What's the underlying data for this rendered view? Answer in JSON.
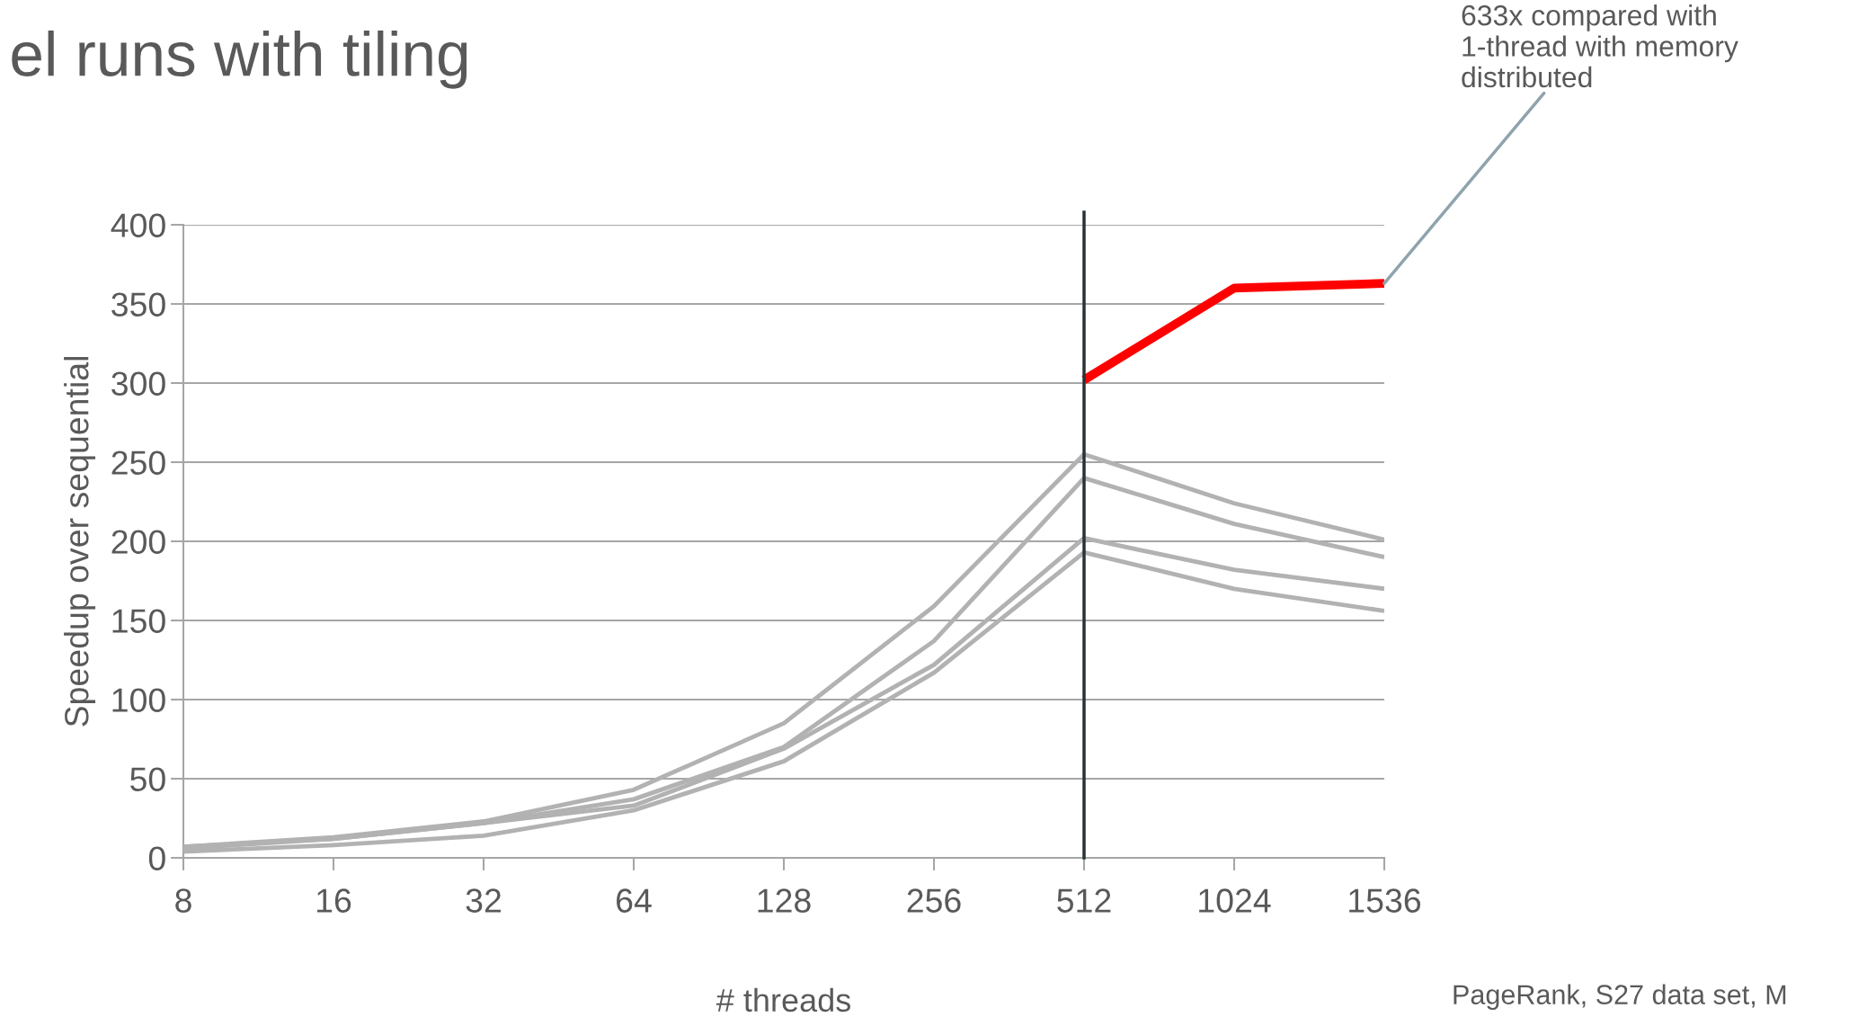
{
  "chart_data": {
    "type": "line",
    "title": "el runs with tiling",
    "xlabel": "# threads",
    "ylabel": "Speedup over sequential",
    "categories": [
      "8",
      "16",
      "32",
      "64",
      "128",
      "256",
      "512",
      "1024",
      "1536"
    ],
    "series": [
      {
        "color": "#b2b2b2",
        "values": [
          7,
          13,
          23,
          43,
          85,
          159,
          255,
          224,
          201
        ]
      },
      {
        "color": "#b2b2b2",
        "values": [
          7,
          12,
          22,
          37,
          70,
          137,
          240,
          211,
          190
        ]
      },
      {
        "color": "#b2b2b2",
        "values": [
          6,
          12,
          22,
          33,
          69,
          122,
          202,
          182,
          170
        ]
      },
      {
        "color": "#b2b2b2",
        "values": [
          4,
          8,
          14,
          30,
          61,
          117,
          193,
          170,
          156
        ]
      },
      {
        "color": "#ff0000",
        "values": [
          null,
          null,
          null,
          null,
          null,
          null,
          302,
          360,
          363
        ]
      }
    ],
    "ylim": [
      0,
      400
    ],
    "yticks": [
      0,
      50,
      100,
      150,
      200,
      250,
      300,
      350,
      400
    ],
    "grid": "y",
    "marker": "none",
    "line_style": "solid",
    "ref_lines": [
      {
        "axis": "x",
        "value": "512",
        "color": "#263238"
      }
    ],
    "annotations": [
      {
        "text": "633x compared with\n1-thread with memory\ndistributed",
        "x": "1536",
        "y": 363
      },
      "PageRank, S27 data set, M"
    ]
  }
}
